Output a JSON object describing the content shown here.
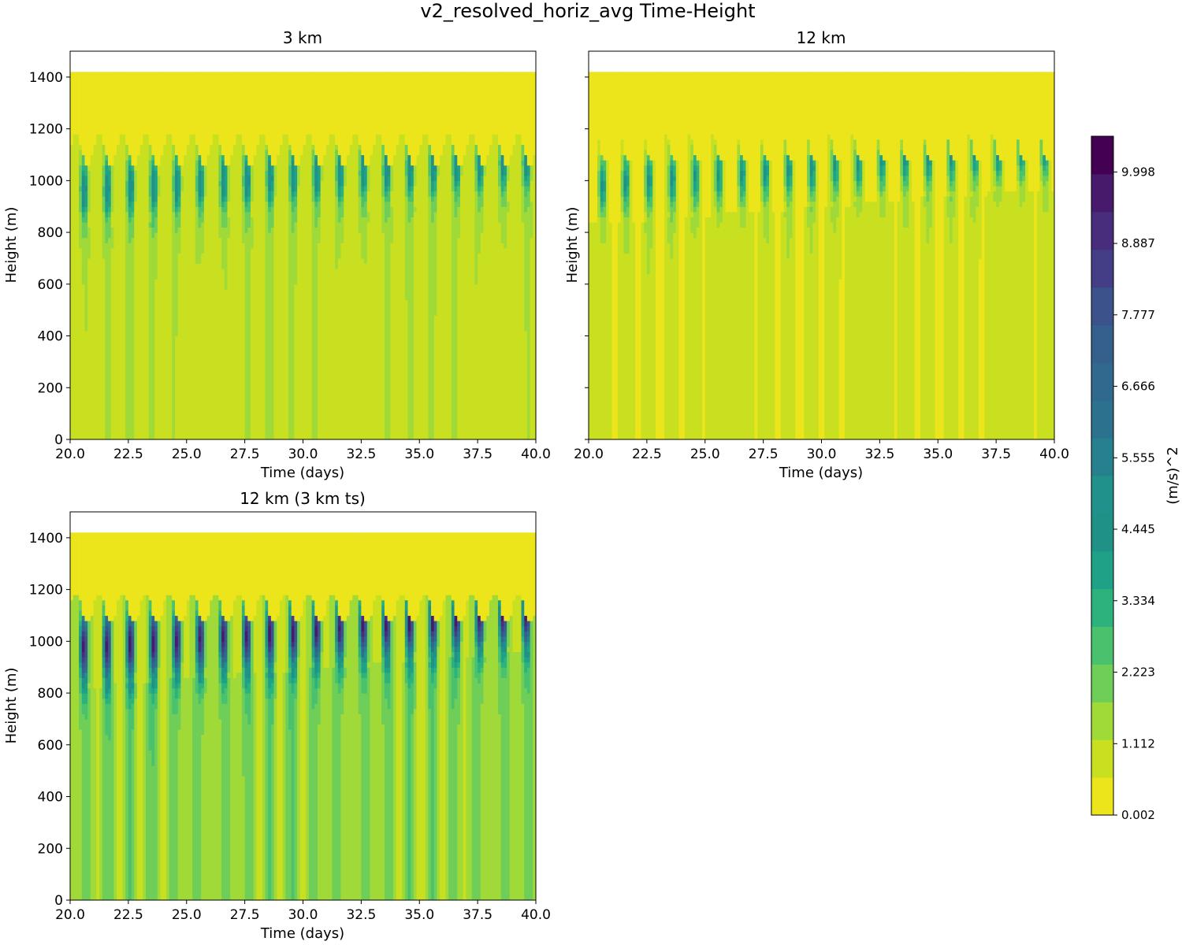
{
  "figure": {
    "title": "v2_resolved_horiz_avg Time-Height"
  },
  "colormap": [
    "#ece51b",
    "#c8e020",
    "#a0da39",
    "#6ece58",
    "#4ac16d",
    "#2db27d",
    "#1fa187",
    "#1f9187",
    "#21918c",
    "#27808e",
    "#2c728e",
    "#31688e",
    "#355f8d",
    "#3b528b",
    "#433e85",
    "#472d7b",
    "#481a6c",
    "#440154"
  ],
  "colorbar": {
    "label": "(m/s)^2",
    "min": 0.002,
    "max": 10.553,
    "tick_values": [
      0.002,
      1.112,
      2.223,
      3.334,
      4.445,
      5.555,
      6.666,
      7.777,
      8.887,
      9.998
    ],
    "tick_labels": [
      "0.002",
      "1.112",
      "2.223",
      "3.334",
      "4.445",
      "5.555",
      "6.666",
      "7.777",
      "8.887",
      "9.998"
    ]
  },
  "chart_data": [
    {
      "type": "contourf",
      "title": "3 km",
      "xlabel": "Time (days)",
      "ylabel": "Height (m)",
      "xlim": [
        20.0,
        40.0
      ],
      "ylim": [
        0,
        1500
      ],
      "data_top": 1420,
      "x_ticks": [
        20.0,
        22.5,
        25.0,
        27.5,
        30.0,
        32.5,
        35.0,
        37.5,
        40.0
      ],
      "x_tick_labels": [
        "20.0",
        "22.5",
        "25.0",
        "27.5",
        "30.0",
        "32.5",
        "35.0",
        "37.5",
        "40.0"
      ],
      "y_ticks": [
        0,
        200,
        400,
        600,
        800,
        1000,
        1200,
        1400
      ],
      "y_tick_labels": [
        "0",
        "200",
        "400",
        "600",
        "800",
        "1000",
        "1200",
        "1400"
      ],
      "show_y_tick_labels": true,
      "field": {
        "base": 1.2,
        "osc": 0.55,
        "peak_amp": 3.6,
        "peak_z0": 960,
        "peak_z_slope": 6,
        "peak_width": 120,
        "osc_amp": 0.55,
        "upper_cut": 1120,
        "period": 1.0
      }
    },
    {
      "type": "contourf",
      "title": "12 km",
      "xlabel": "Time (days)",
      "ylabel": "Height (m)",
      "xlim": [
        20.0,
        40.0
      ],
      "ylim": [
        0,
        1500
      ],
      "data_top": 1420,
      "x_ticks": [
        20.0,
        22.5,
        25.0,
        27.5,
        30.0,
        32.5,
        35.0,
        37.5,
        40.0
      ],
      "x_tick_labels": [
        "20.0",
        "22.5",
        "25.0",
        "27.5",
        "30.0",
        "32.5",
        "35.0",
        "37.5",
        "40.0"
      ],
      "y_ticks": [
        0,
        200,
        400,
        600,
        800,
        1000,
        1200,
        1400
      ],
      "y_tick_labels": [
        "0",
        "200",
        "400",
        "600",
        "800",
        "1000",
        "1200",
        "1400"
      ],
      "show_y_tick_labels": false,
      "field": {
        "base": 0.8,
        "osc": 0.5,
        "peak_amp": 3.2,
        "peak_z0": 980,
        "peak_z_slope": 7,
        "peak_width": 110,
        "osc_amp": 0.55,
        "upper_cut": 1130,
        "period": 1.0
      }
    },
    {
      "type": "contourf",
      "title": "12 km (3 km ts)",
      "xlabel": "Time (days)",
      "ylabel": "Height (m)",
      "xlim": [
        20.0,
        40.0
      ],
      "ylim": [
        0,
        1500
      ],
      "data_top": 1420,
      "x_ticks": [
        20.0,
        22.5,
        25.0,
        27.5,
        30.0,
        32.5,
        35.0,
        37.5,
        40.0
      ],
      "x_tick_labels": [
        "20.0",
        "22.5",
        "25.0",
        "27.5",
        "30.0",
        "32.5",
        "35.0",
        "37.5",
        "40.0"
      ],
      "y_ticks": [
        0,
        200,
        400,
        600,
        800,
        1000,
        1200,
        1400
      ],
      "y_tick_labels": [
        "0",
        "200",
        "400",
        "600",
        "800",
        "1000",
        "1200",
        "1400"
      ],
      "show_y_tick_labels": true,
      "field": {
        "base": 1.8,
        "osc": 1.1,
        "peak_amp": 7.8,
        "peak_z0": 970,
        "peak_z_slope": 7,
        "peak_width": 135,
        "osc_amp": 0.75,
        "upper_cut": 1130,
        "period": 1.0
      }
    }
  ]
}
